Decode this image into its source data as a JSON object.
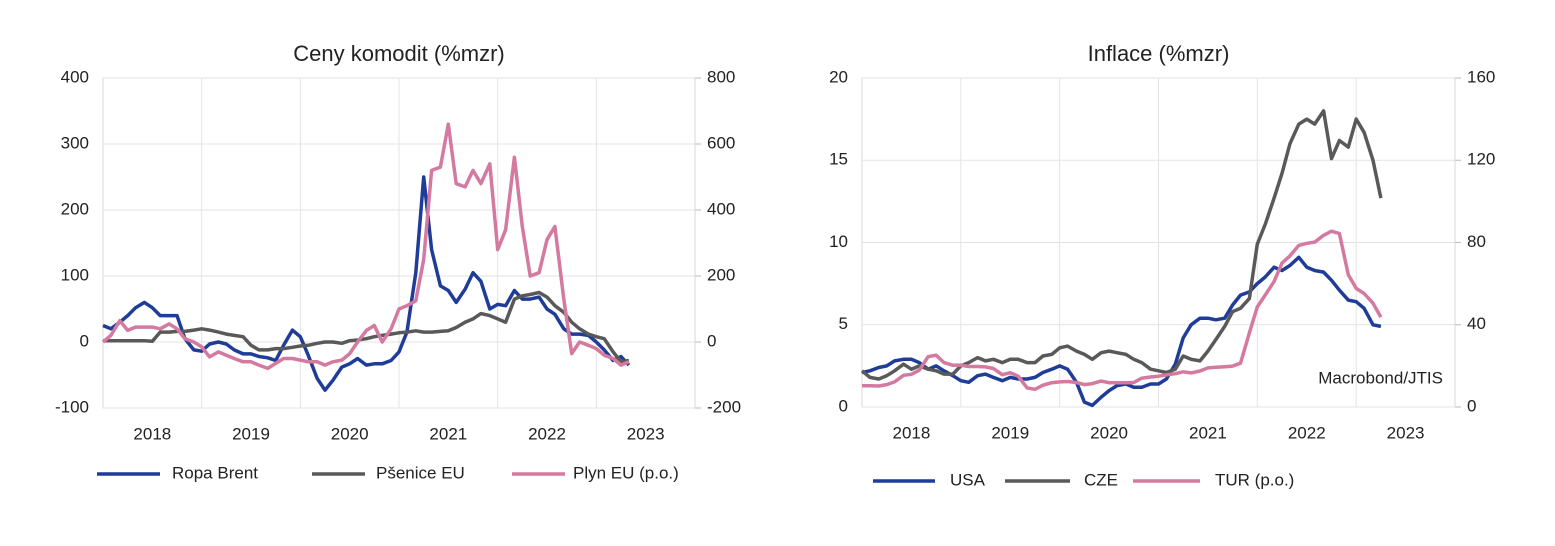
{
  "chart_data": [
    {
      "type": "line",
      "title": "Ceny komodit (%mzr)",
      "x": [
        2018,
        2018.08,
        2018.17,
        2018.25,
        2018.33,
        2018.42,
        2018.5,
        2018.58,
        2018.67,
        2018.75,
        2018.83,
        2018.92,
        2019,
        2019.08,
        2019.17,
        2019.25,
        2019.33,
        2019.42,
        2019.5,
        2019.58,
        2019.67,
        2019.75,
        2019.83,
        2019.92,
        2020,
        2020.08,
        2020.17,
        2020.25,
        2020.33,
        2020.42,
        2020.5,
        2020.58,
        2020.67,
        2020.75,
        2020.83,
        2020.92,
        2021,
        2021.08,
        2021.17,
        2021.25,
        2021.33,
        2021.42,
        2021.5,
        2021.58,
        2021.67,
        2021.75,
        2021.83,
        2021.92,
        2022,
        2022.08,
        2022.17,
        2022.25,
        2022.33,
        2022.42,
        2022.5,
        2022.58,
        2022.67,
        2022.75,
        2022.83,
        2022.92,
        2023,
        2023.08,
        2023.17,
        2023.25,
        2023.33
      ],
      "series": [
        {
          "name": "Ropa Brent",
          "color": "#1f3c98",
          "values": [
            25,
            20,
            30,
            40,
            52,
            60,
            52,
            40,
            40,
            40,
            5,
            -12,
            -14,
            -3,
            0,
            -3,
            -12,
            -18,
            -18,
            -22,
            -24,
            -28,
            -5,
            18,
            8,
            -20,
            -55,
            -73,
            -58,
            -38,
            -33,
            -25,
            -35,
            -33,
            -33,
            -28,
            -15,
            15,
            105,
            250,
            140,
            85,
            78,
            60,
            80,
            105,
            92,
            50,
            57,
            55,
            78,
            65,
            65,
            68,
            50,
            42,
            20,
            12,
            12,
            10,
            0,
            -12,
            -28,
            -22,
            -35
          ]
        },
        {
          "name": "Pšenice EU",
          "color": "#595959",
          "values": [
            2,
            2,
            2,
            2,
            2,
            2,
            1,
            15,
            15,
            16,
            16,
            18,
            20,
            18,
            15,
            12,
            10,
            8,
            -5,
            -12,
            -12,
            -10,
            -10,
            -8,
            -6,
            -5,
            -2,
            0,
            0,
            -2,
            2,
            3,
            5,
            8,
            10,
            12,
            14,
            15,
            17,
            15,
            15,
            16,
            17,
            22,
            30,
            35,
            43,
            40,
            35,
            30,
            65,
            70,
            72,
            75,
            68,
            55,
            45,
            30,
            20,
            12,
            8,
            5,
            -15,
            -30,
            -28
          ]
        },
        {
          "name": "Plyn EU (p.o.)",
          "color": "#d4799f",
          "axis": "y2",
          "values": [
            0,
            20,
            65,
            35,
            45,
            45,
            45,
            40,
            55,
            40,
            10,
            0,
            -15,
            -45,
            -30,
            -40,
            -50,
            -60,
            -60,
            -70,
            -80,
            -65,
            -50,
            -50,
            -55,
            -60,
            -60,
            -70,
            -60,
            -55,
            -35,
            0,
            35,
            50,
            0,
            40,
            100,
            110,
            125,
            250,
            520,
            530,
            660,
            480,
            470,
            520,
            480,
            540,
            280,
            340,
            560,
            350,
            200,
            210,
            310,
            350,
            130,
            -35,
            0,
            -10,
            -20,
            -40,
            -50,
            -70,
            -60
          ]
        }
      ],
      "xlim": [
        2018,
        2024
      ],
      "xticks": [
        {
          "value": 2018.5,
          "label": "2018"
        },
        {
          "value": 2019.5,
          "label": "2019"
        },
        {
          "value": 2020.5,
          "label": "2020"
        },
        {
          "value": 2021.5,
          "label": "2021"
        },
        {
          "value": 2022.5,
          "label": "2022"
        },
        {
          "value": 2023.5,
          "label": "2023"
        }
      ],
      "xgrid": [
        2019,
        2020,
        2021,
        2022,
        2023
      ],
      "ylim": [
        -100,
        400
      ],
      "yticks": [
        -100,
        0,
        100,
        200,
        300,
        400
      ],
      "y2lim": [
        -200,
        800
      ],
      "y2ticks": [
        -200,
        0,
        200,
        400,
        600,
        800
      ],
      "grid": true,
      "legend": "bottom"
    },
    {
      "type": "line",
      "title": "Inflace (%mzr)",
      "x": [
        2018,
        2018.08,
        2018.17,
        2018.25,
        2018.33,
        2018.42,
        2018.5,
        2018.58,
        2018.67,
        2018.75,
        2018.83,
        2018.92,
        2019,
        2019.08,
        2019.17,
        2019.25,
        2019.33,
        2019.42,
        2019.5,
        2019.58,
        2019.67,
        2019.75,
        2019.83,
        2019.92,
        2020,
        2020.08,
        2020.17,
        2020.25,
        2020.33,
        2020.42,
        2020.5,
        2020.58,
        2020.67,
        2020.75,
        2020.83,
        2020.92,
        2021,
        2021.08,
        2021.17,
        2021.25,
        2021.33,
        2021.42,
        2021.5,
        2021.58,
        2021.67,
        2021.75,
        2021.83,
        2021.92,
        2022,
        2022.08,
        2022.17,
        2022.25,
        2022.33,
        2022.42,
        2022.5,
        2022.58,
        2022.67,
        2022.75,
        2022.83,
        2022.92,
        2023,
        2023.08,
        2023.17,
        2023.25
      ],
      "series": [
        {
          "name": "USA",
          "color": "#1f3c98",
          "values": [
            2.1,
            2.2,
            2.4,
            2.5,
            2.8,
            2.9,
            2.9,
            2.7,
            2.3,
            2.5,
            2.2,
            1.9,
            1.6,
            1.5,
            1.9,
            2.0,
            1.8,
            1.6,
            1.8,
            1.7,
            1.7,
            1.8,
            2.1,
            2.3,
            2.5,
            2.3,
            1.5,
            0.3,
            0.1,
            0.6,
            1.0,
            1.3,
            1.4,
            1.2,
            1.2,
            1.4,
            1.4,
            1.7,
            2.6,
            4.2,
            5.0,
            5.4,
            5.4,
            5.3,
            5.4,
            6.2,
            6.8,
            7.0,
            7.5,
            7.9,
            8.5,
            8.3,
            8.6,
            9.1,
            8.5,
            8.3,
            8.2,
            7.7,
            7.1,
            6.5,
            6.4,
            6.0,
            5.0,
            4.9
          ]
        },
        {
          "name": "CZE",
          "color": "#595959",
          "values": [
            2.2,
            1.8,
            1.7,
            1.9,
            2.2,
            2.6,
            2.3,
            2.5,
            2.3,
            2.2,
            2.0,
            2.0,
            2.5,
            2.7,
            3.0,
            2.8,
            2.9,
            2.7,
            2.9,
            2.9,
            2.7,
            2.7,
            3.1,
            3.2,
            3.6,
            3.7,
            3.4,
            3.2,
            2.9,
            3.3,
            3.4,
            3.3,
            3.2,
            2.9,
            2.7,
            2.3,
            2.2,
            2.1,
            2.3,
            3.1,
            2.9,
            2.8,
            3.4,
            4.1,
            4.9,
            5.8,
            6.0,
            6.6,
            9.9,
            11.1,
            12.7,
            14.2,
            16.0,
            17.2,
            17.5,
            17.2,
            18.0,
            15.1,
            16.2,
            15.8,
            17.5,
            16.7,
            15.0,
            12.7
          ]
        },
        {
          "name": "TUR (p.o.)",
          "color": "#d4799f",
          "axis": "y2",
          "values": [
            10.3,
            10.3,
            10.2,
            10.9,
            12.2,
            15.4,
            15.9,
            17.9,
            24.5,
            25.2,
            21.6,
            20.3,
            20.4,
            19.7,
            19.7,
            19.5,
            18.7,
            15.7,
            16.7,
            15.0,
            9.3,
            8.6,
            10.6,
            11.8,
            12.2,
            12.4,
            11.9,
            10.9,
            11.4,
            12.6,
            11.8,
            11.8,
            11.8,
            11.9,
            14.0,
            14.6,
            15.0,
            15.6,
            16.2,
            17.1,
            16.6,
            17.5,
            19.0,
            19.3,
            19.6,
            19.9,
            21.3,
            36.1,
            48.7,
            54.4,
            61.1,
            70.0,
            73.5,
            78.6,
            79.6,
            80.2,
            83.5,
            85.5,
            84.4,
            64.3,
            57.7,
            55.2,
            50.5,
            43.7
          ]
        }
      ],
      "xlim": [
        2018,
        2024
      ],
      "xticks": [
        {
          "value": 2018.5,
          "label": "2018"
        },
        {
          "value": 2019.5,
          "label": "2019"
        },
        {
          "value": 2020.5,
          "label": "2020"
        },
        {
          "value": 2021.5,
          "label": "2021"
        },
        {
          "value": 2022.5,
          "label": "2022"
        },
        {
          "value": 2023.5,
          "label": "2023"
        }
      ],
      "xgrid": [
        2019,
        2020,
        2021,
        2022,
        2023
      ],
      "ylim": [
        0,
        20
      ],
      "yticks": [
        0,
        5,
        10,
        15,
        20
      ],
      "y2lim": [
        0,
        160
      ],
      "y2ticks": [
        0,
        40,
        80,
        120,
        160
      ],
      "grid": true,
      "legend": "bottom",
      "annotation": "Macrobond/JTIS"
    }
  ]
}
